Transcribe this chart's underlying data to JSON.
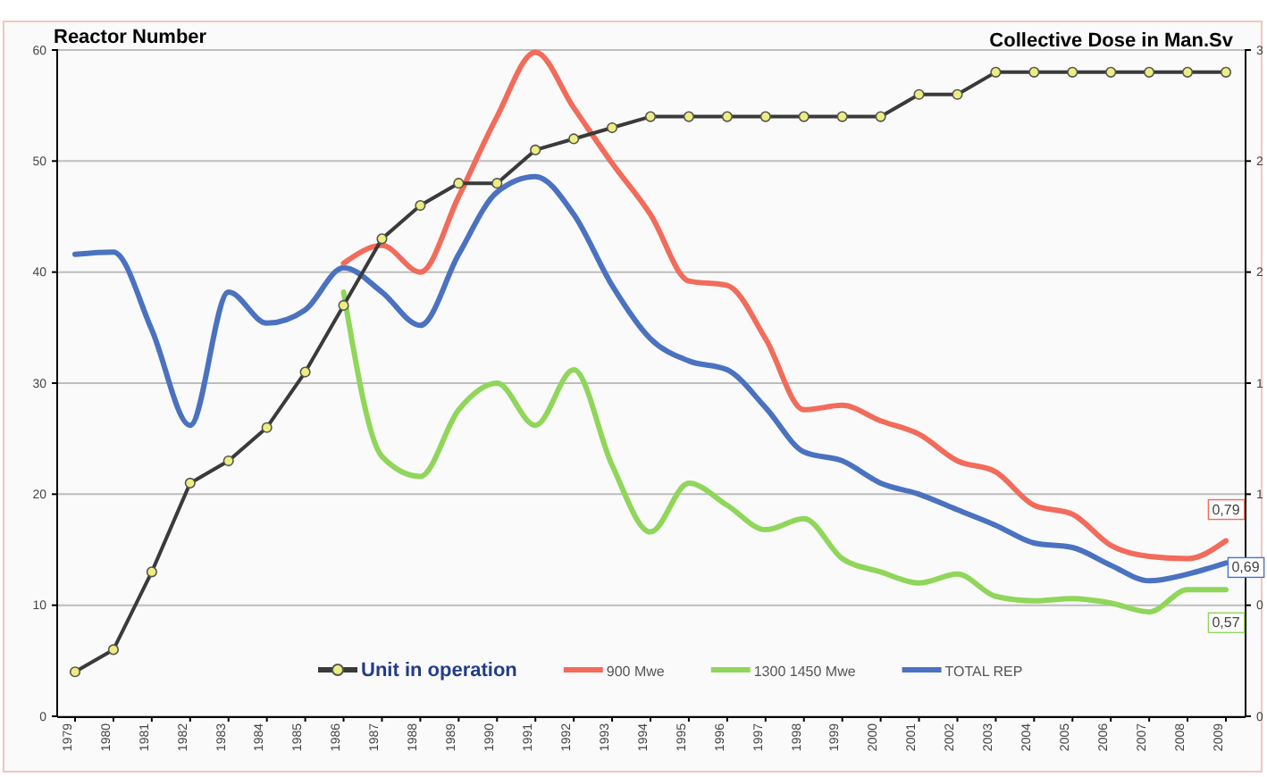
{
  "chart_data": {
    "type": "line",
    "ylabel": "Reactor Number",
    "y2label": "Collective Dose in Man.Sv",
    "categories": [
      "1979",
      "1980",
      "1981",
      "1982",
      "1983",
      "1984",
      "1985",
      "1986",
      "1987",
      "1988",
      "1989",
      "1990",
      "1991",
      "1992",
      "1993",
      "1994",
      "1995",
      "1996",
      "1997",
      "1998",
      "1999",
      "2000",
      "2001",
      "2002",
      "2003",
      "2004",
      "2005",
      "2006",
      "2007",
      "2008",
      "2009"
    ],
    "ylim": [
      0,
      60
    ],
    "yticks": [
      0,
      10,
      20,
      30,
      40,
      50,
      60
    ],
    "y2lim": [
      0,
      3
    ],
    "y2ticks": [
      {
        "value": 0,
        "label": "0"
      },
      {
        "value": 0.5,
        "label": "0"
      },
      {
        "value": 1,
        "label": "1"
      },
      {
        "value": 1.5,
        "label": "1"
      },
      {
        "value": 2,
        "label": "2"
      },
      {
        "value": 2.5,
        "label": "2"
      },
      {
        "value": 3,
        "label": "3"
      }
    ],
    "grid": "y",
    "legend": "bottom",
    "series": [
      {
        "name": "Unit in operation",
        "color": "#3a3a3a",
        "marker": "circle",
        "values": [
          4,
          6,
          13,
          21,
          23,
          26,
          31,
          37,
          43,
          46,
          48,
          48,
          51,
          52,
          53,
          54,
          54,
          54,
          54,
          54,
          54,
          54,
          56,
          56,
          58,
          58,
          58,
          58,
          58,
          58,
          58
        ]
      },
      {
        "name": "900 Mwe",
        "color": "#f26b5b",
        "axis": "y2",
        "marker": "none",
        "values": [
          null,
          null,
          null,
          null,
          null,
          null,
          null,
          2.04,
          2.12,
          2.0,
          2.34,
          2.7,
          2.99,
          2.74,
          2.49,
          2.26,
          1.96,
          1.94,
          1.7,
          1.38,
          1.4,
          1.33,
          1.27,
          1.15,
          1.1,
          0.95,
          0.91,
          0.77,
          0.72,
          0.71,
          0.79
        ],
        "value_labels": [
          null,
          null,
          null,
          null,
          null,
          null,
          null,
          null,
          null,
          null,
          null,
          null,
          null,
          null,
          null,
          null,
          null,
          null,
          null,
          null,
          null,
          null,
          null,
          null,
          null,
          null,
          null,
          null,
          null,
          null,
          "0,79"
        ]
      },
      {
        "name": "1300 1450 Mwe",
        "color": "#8fd65a",
        "axis": "y2",
        "marker": "none",
        "values": [
          null,
          null,
          null,
          null,
          null,
          null,
          null,
          1.91,
          1.17,
          1.08,
          1.38,
          1.5,
          1.31,
          1.56,
          1.13,
          0.83,
          1.05,
          0.95,
          0.84,
          0.89,
          0.71,
          0.65,
          0.6,
          0.64,
          0.54,
          0.52,
          0.53,
          0.51,
          0.47,
          0.57,
          0.57
        ],
        "value_labels": [
          null,
          null,
          null,
          null,
          null,
          null,
          null,
          null,
          null,
          null,
          null,
          null,
          null,
          null,
          null,
          null,
          null,
          null,
          null,
          null,
          null,
          null,
          null,
          null,
          null,
          null,
          null,
          null,
          null,
          null,
          "0,57"
        ]
      },
      {
        "name": "TOTAL REP",
        "color": "#4a72c0",
        "axis": "y2",
        "marker": "none",
        "values": [
          2.08,
          2.09,
          1.74,
          1.31,
          1.91,
          1.77,
          1.83,
          2.02,
          1.91,
          1.76,
          2.08,
          2.36,
          2.43,
          2.26,
          1.94,
          1.7,
          1.6,
          1.56,
          1.39,
          1.19,
          1.15,
          1.05,
          1.0,
          0.93,
          0.86,
          0.78,
          0.76,
          0.68,
          0.61,
          0.64,
          0.69
        ],
        "value_labels": [
          null,
          null,
          null,
          null,
          null,
          null,
          null,
          null,
          null,
          null,
          null,
          null,
          null,
          null,
          null,
          null,
          null,
          null,
          null,
          null,
          null,
          null,
          null,
          null,
          null,
          null,
          null,
          null,
          null,
          null,
          "0,69"
        ]
      }
    ]
  }
}
